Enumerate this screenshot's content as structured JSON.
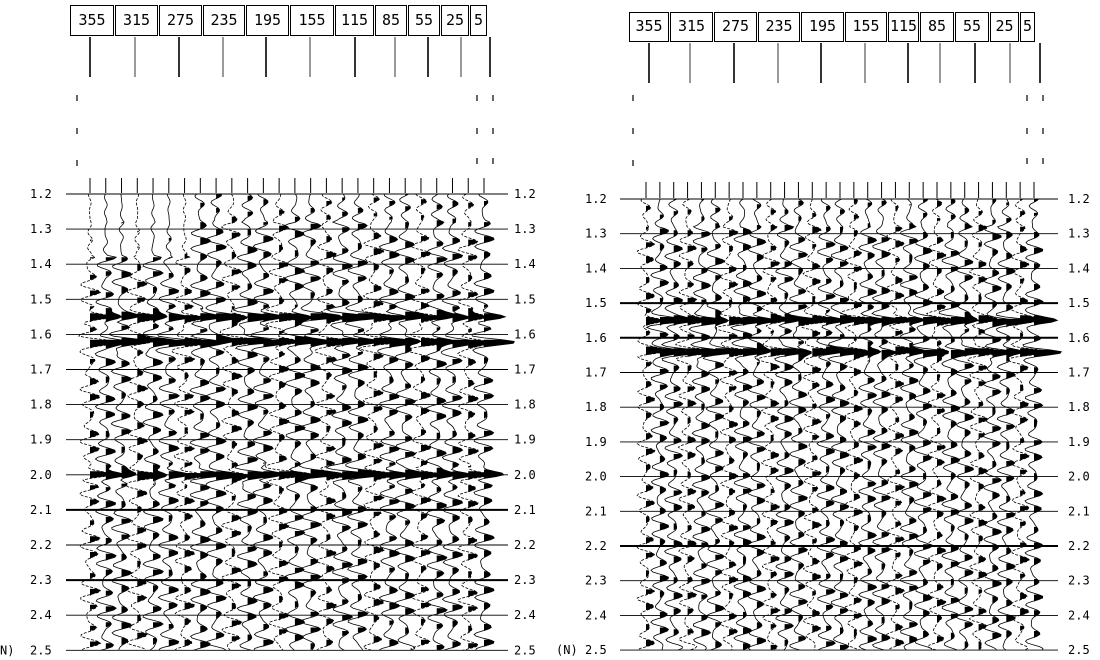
{
  "panels": [
    {
      "offsets": [
        "355",
        "315",
        "275",
        "235",
        "195",
        "155",
        "115",
        "85",
        "55",
        "25",
        "5"
      ],
      "time_labels": [
        "1.2",
        "1.3",
        "1.4",
        "1.5",
        "1.6",
        "1.7",
        "1.8",
        "1.9",
        "2.0",
        "2.1",
        "2.2",
        "2.3",
        "2.4",
        "2.5"
      ],
      "unit_prefix": "N)",
      "bold_times": [
        "2.1",
        "2.3"
      ],
      "strong_events": [
        1.55,
        1.62,
        2.0
      ]
    },
    {
      "offsets": [
        "355",
        "315",
        "275",
        "235",
        "195",
        "155",
        "115",
        "85",
        "55",
        "25",
        "5"
      ],
      "time_labels": [
        "1.2",
        "1.3",
        "1.4",
        "1.5",
        "1.6",
        "1.7",
        "1.8",
        "1.9",
        "2.0",
        "2.1",
        "2.2",
        "2.3",
        "2.4",
        "2.5"
      ],
      "unit_prefix": "(N)",
      "bold_times": [
        "1.5",
        "1.6",
        "2.2"
      ],
      "strong_events": [
        1.55,
        1.64
      ]
    }
  ]
}
